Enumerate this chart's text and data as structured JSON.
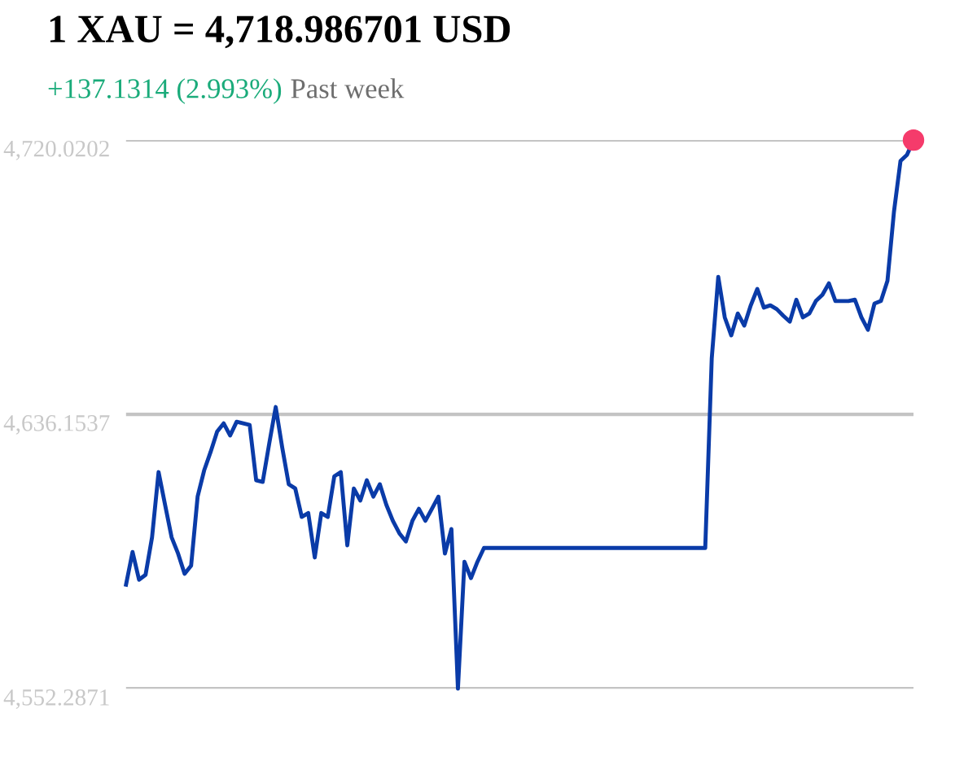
{
  "chart_data": {
    "type": "line",
    "title": "1 XAU = 4,718.986701 USD",
    "subtitle": "+137.1314 (2.993%)",
    "annotations": [
      "Past week"
    ],
    "categories": [
      null,
      null,
      null,
      null,
      null,
      null,
      null,
      null,
      null,
      null,
      null,
      null,
      null,
      null,
      null,
      null,
      null,
      null,
      null,
      null,
      null,
      null,
      null,
      null,
      null,
      null,
      null,
      null,
      null,
      null,
      null,
      null,
      null,
      null,
      null,
      null,
      null,
      null,
      null,
      null,
      null,
      null,
      null,
      null,
      null,
      null,
      null,
      null,
      null,
      null,
      null,
      null,
      null,
      null,
      null,
      null,
      null,
      null,
      null,
      null,
      null,
      null,
      null,
      null,
      null,
      null,
      null,
      null,
      null,
      null,
      null,
      null,
      null,
      null,
      null,
      null,
      null,
      null,
      null,
      null,
      null,
      null,
      null,
      null,
      null,
      null,
      null,
      null,
      null,
      null,
      null,
      null,
      null,
      null,
      null,
      null,
      null,
      null,
      null,
      null,
      null,
      null,
      null,
      null,
      null,
      null,
      null,
      null,
      null,
      null,
      null,
      null,
      null,
      null,
      null,
      null,
      null,
      null,
      null,
      null,
      null,
      null
    ],
    "series": [
      {
        "color": "#0a3ba8",
        "values": [
          4584.1,
          4594.1,
          4585.6,
          4587.1,
          4598.6,
          4618.5,
          4608.5,
          4598.6,
          4593.6,
          4587.4,
          4589.9,
          4611.0,
          4619.0,
          4624.7,
          4630.9,
          4633.4,
          4629.7,
          4633.9,
          4633.4,
          4632.9,
          4616.0,
          4615.5,
          4627.2,
          4638.4,
          4626.0,
          4614.8,
          4613.5,
          4604.8,
          4606.0,
          4592.4,
          4606.0,
          4604.8,
          4617.2,
          4618.5,
          4596.1,
          4613.5,
          4609.8,
          4616.0,
          4611.0,
          4614.8,
          4608.5,
          4603.6,
          4599.8,
          4597.3,
          4603.6,
          4607.3,
          4603.6,
          4607.3,
          4611.0,
          4593.6,
          4601.1,
          4552.3,
          4591.1,
          4586.1,
          4591.1,
          4595.3,
          4595.3,
          4595.3,
          4595.3,
          4595.3,
          4595.3,
          4595.3,
          4595.3,
          4595.3,
          4595.3,
          4595.3,
          4595.3,
          4595.3,
          4595.3,
          4595.3,
          4595.3,
          4595.3,
          4595.3,
          4595.3,
          4595.3,
          4595.3,
          4595.3,
          4595.3,
          4595.3,
          4595.3,
          4595.3,
          4595.3,
          4595.3,
          4595.3,
          4595.3,
          4595.3,
          4595.3,
          4595.3,
          4595.3,
          4595.3,
          4653.3,
          4678.2,
          4665.8,
          4660.3,
          4667.0,
          4663.3,
          4669.5,
          4674.5,
          4668.8,
          4669.5,
          4668.3,
          4666.3,
          4664.5,
          4671.2,
          4665.8,
          4667.0,
          4670.8,
          4672.7,
          4676.2,
          4670.8,
          4670.8,
          4670.8,
          4671.2,
          4665.8,
          4662.0,
          4670.0,
          4670.8,
          4677.0,
          4698.1,
          4713.6,
          4715.5,
          4720.0
        ]
      }
    ],
    "ylim": [
      4552.2871,
      4720.0202
    ],
    "yticks": [
      {
        "value": 4552.2871,
        "label": "4,552.2871"
      },
      {
        "value": 4636.1537,
        "label": "4,636.1537"
      },
      {
        "value": 4720.0202,
        "label": "4,720.0202"
      }
    ],
    "grid": "y",
    "tick_labels": "y",
    "marker": "none",
    "line_style": "solid"
  }
}
